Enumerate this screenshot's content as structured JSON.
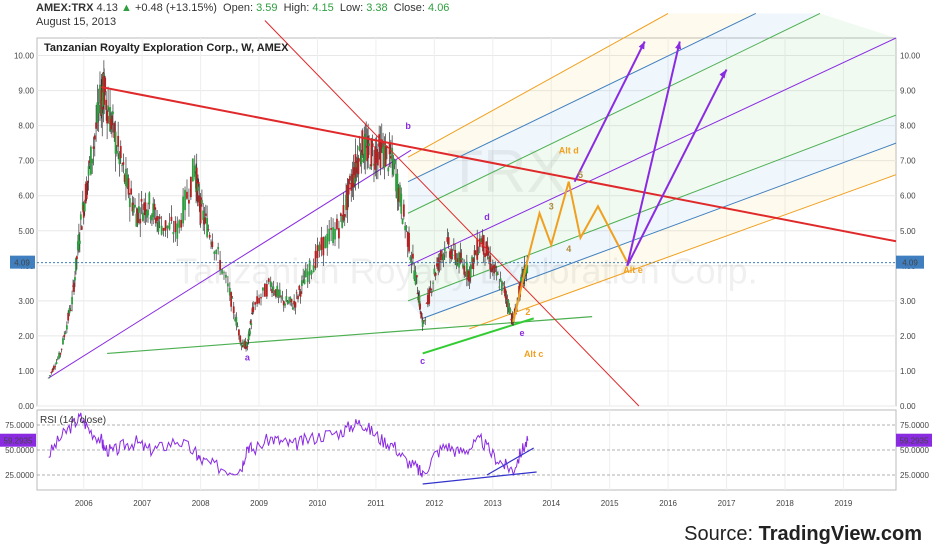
{
  "header": {
    "symbol": "AMEX:TRX",
    "last": "4.13",
    "change": "+0.48 (+13.15%)",
    "open_label": "Open:",
    "open": "3.59",
    "high_label": "High:",
    "high": "4.15",
    "low_label": "Low:",
    "low": "3.38",
    "close_label": "Close:",
    "close": "4.06",
    "date": "August 15, 2013"
  },
  "title": "Tanzanian Royalty Exploration Corp., W, AMEX",
  "watermark_symbol": "TRX",
  "watermark_name": "Tanzanian Royalty Exploration Corp.",
  "price_axis": {
    "ticks": [
      "10.00",
      "9.00",
      "8.00",
      "7.00",
      "6.00",
      "5.00",
      "4.00",
      "3.00",
      "2.00",
      "1.00",
      "0.00"
    ],
    "current": "4.09"
  },
  "rsi": {
    "title": "RSI (14, close)",
    "ticks": [
      "75.0000",
      "50.0000",
      "25.0000"
    ],
    "current": "59.2935"
  },
  "time_axis": [
    "2006",
    "2007",
    "2008",
    "2009",
    "2010",
    "2011",
    "2012",
    "2013",
    "2014",
    "2015",
    "2016",
    "2017",
    "2018",
    "2019"
  ],
  "annotations": {
    "a": "a",
    "b": "b",
    "c": "c",
    "d": "d",
    "e": "e",
    "alt_c": "Alt c",
    "alt_d": "Alt d",
    "alt_e": "Alt e",
    "w2": "2",
    "w3": "3",
    "w4": "4",
    "w5": "5"
  },
  "source_prefix": "Source: ",
  "source_brand": "TradingView.com",
  "colors": {
    "price": "#2f2f2f",
    "up_candle": "#2e9e3f",
    "down_candle": "#b22222",
    "red_line": "#e0292a",
    "purple": "#8a2be2",
    "green": "#4caf50",
    "orange": "#f0a020",
    "blue": "#3f7fbf"
  },
  "chart_data": {
    "type": "line",
    "title": "Tanzanian Royalty Exploration Corp., W, AMEX",
    "x": [
      2005.4,
      2005.6,
      2005.8,
      2005.95,
      2006.1,
      2006.3,
      2006.35,
      2006.5,
      2006.7,
      2006.9,
      2007.1,
      2007.3,
      2007.6,
      2007.9,
      2008.0,
      2008.2,
      2008.5,
      2008.7,
      2008.8,
      2008.9,
      2009.2,
      2009.4,
      2009.6,
      2009.8,
      2010.1,
      2010.4,
      2010.6,
      2010.75,
      2010.9,
      2011.1,
      2011.3,
      2011.5,
      2011.7,
      2011.8,
      2012.0,
      2012.2,
      2012.4,
      2012.6,
      2012.8,
      2013.0,
      2013.2,
      2013.35,
      2013.5,
      2013.6
    ],
    "y": [
      0.8,
      1.5,
      3.0,
      5.2,
      6.8,
      8.8,
      9.0,
      7.9,
      6.5,
      5.5,
      5.8,
      5.2,
      5.0,
      6.8,
      5.6,
      4.8,
      3.2,
      1.8,
      1.7,
      2.8,
      3.5,
      3.0,
      2.9,
      3.7,
      4.6,
      5.2,
      6.5,
      7.4,
      7.2,
      7.3,
      6.9,
      5.2,
      3.5,
      2.3,
      3.8,
      4.6,
      4.2,
      3.8,
      4.8,
      3.9,
      3.3,
      2.4,
      3.6,
      4.06
    ],
    "rsi": [
      45,
      62,
      75,
      83,
      70,
      60,
      52,
      48,
      55,
      58,
      50,
      52,
      60,
      48,
      40,
      35,
      30,
      32,
      55,
      50,
      62,
      58,
      55,
      60,
      65,
      68,
      75,
      78,
      70,
      60,
      55,
      40,
      32,
      25,
      45,
      55,
      48,
      52,
      60,
      45,
      35,
      30,
      50,
      59.29
    ],
    "ylim": [
      0,
      10.5
    ],
    "rsi_ylim": [
      10,
      90
    ],
    "xlim": [
      2005.2,
      2019.9
    ]
  }
}
